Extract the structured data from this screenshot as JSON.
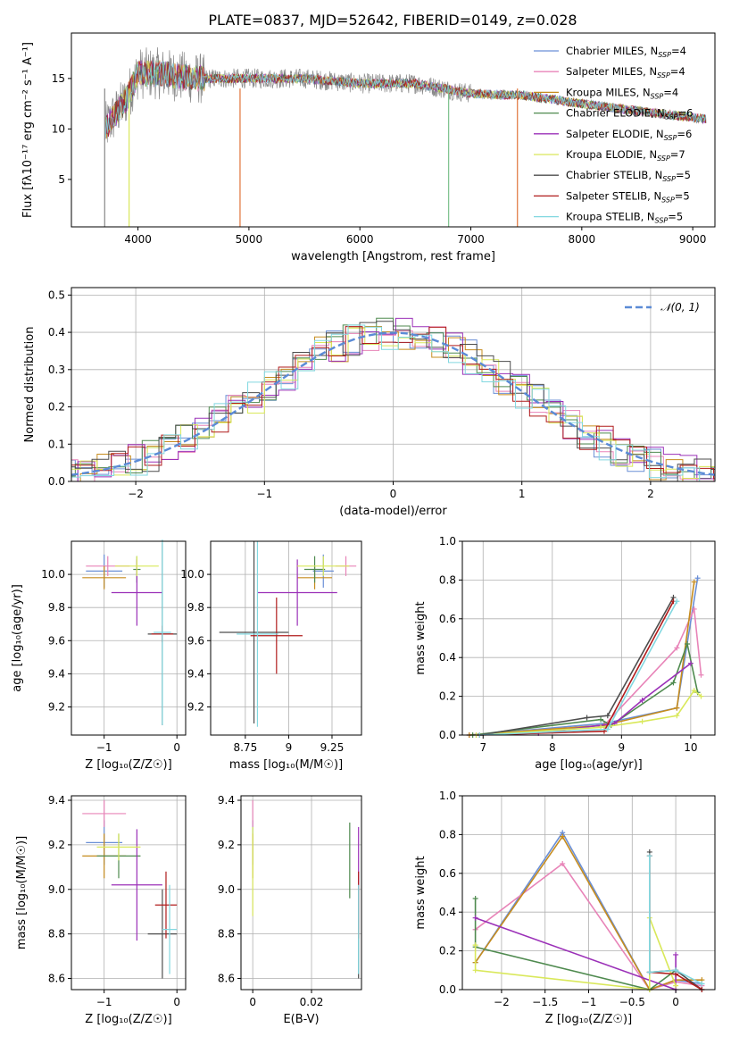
{
  "title": "PLATE=0837, MJD=52642, FIBERID=0149, z=0.028",
  "colors": {
    "chabrier_miles": "#6a8fd6",
    "salpeter_miles": "#e884b8",
    "kroupa_miles": "#c68c1e",
    "chabrier_elodie": "#4f8a4f",
    "salpeter_elodie": "#9b30b8",
    "kroupa_elodie": "#d9e85a",
    "chabrier_stelib": "#4d4d4d",
    "salpeter_stelib": "#b01c1c",
    "kroupa_stelib": "#82d8e0",
    "gaussian": "#5b8bd6",
    "grid": "#b0b0b0"
  },
  "legend_models": [
    {
      "label": "Chabrier MILES, N",
      "sub": "SSP",
      "eq": "=4",
      "color_key": "chabrier_miles"
    },
    {
      "label": "Salpeter MILES, N",
      "sub": "SSP",
      "eq": "=4",
      "color_key": "salpeter_miles"
    },
    {
      "label": "Kroupa MILES, N",
      "sub": "SSP",
      "eq": "=4",
      "color_key": "kroupa_miles"
    },
    {
      "label": "Chabrier ELODIE, N",
      "sub": "SSP",
      "eq": "=6",
      "color_key": "chabrier_elodie"
    },
    {
      "label": "Salpeter ELODIE, N",
      "sub": "SSP",
      "eq": "=6",
      "color_key": "salpeter_elodie"
    },
    {
      "label": "Kroupa ELODIE, N",
      "sub": "SSP",
      "eq": "=7",
      "color_key": "kroupa_elodie"
    },
    {
      "label": "Chabrier STELIB, N",
      "sub": "SSP",
      "eq": "=5",
      "color_key": "chabrier_stelib"
    },
    {
      "label": "Salpeter STELIB, N",
      "sub": "SSP",
      "eq": "=5",
      "color_key": "salpeter_stelib"
    },
    {
      "label": "Kroupa STELIB, N",
      "sub": "SSP",
      "eq": "=5",
      "color_key": "kroupa_stelib"
    }
  ],
  "chart_data": [
    {
      "type": "line",
      "title": "PLATE=0837, MJD=52642, FIBERID=0149, z=0.028",
      "xlabel": "wavelength [Angstrom, rest frame]",
      "ylabel": "Flux [fλ10⁻¹⁷ erg cm⁻² s⁻¹ A⁻¹]",
      "xlim": [
        3400,
        9200
      ],
      "ylim": [
        0.3,
        19.5
      ],
      "xticks": [
        4000,
        5000,
        6000,
        7000,
        8000,
        9000
      ],
      "yticks": [
        5,
        10,
        15
      ],
      "legend": "top-right",
      "series": [
        {
          "name": "data",
          "range": [
            3700,
            9120
          ],
          "envelope": [
            [
              3700,
              10
            ],
            [
              3800,
              11.5
            ],
            [
              3900,
              13
            ],
            [
              4000,
              15.5
            ],
            [
              4200,
              15.5
            ],
            [
              4500,
              15
            ],
            [
              5000,
              15
            ],
            [
              5500,
              15
            ],
            [
              6000,
              14.5
            ],
            [
              6500,
              14.5
            ],
            [
              7000,
              13.5
            ],
            [
              7500,
              13.3
            ],
            [
              8000,
              12.5
            ],
            [
              8500,
              11.8
            ],
            [
              9100,
              11
            ]
          ]
        },
        {
          "name": "models",
          "range": [
            3700,
            9120
          ],
          "envelope": [
            [
              3700,
              10
            ],
            [
              3800,
              11.5
            ],
            [
              3900,
              13
            ],
            [
              4000,
              15.5
            ],
            [
              4200,
              15.5
            ],
            [
              4500,
              15
            ],
            [
              5000,
              15
            ],
            [
              5500,
              15
            ],
            [
              6000,
              14.5
            ],
            [
              6500,
              14.5
            ],
            [
              7000,
              13.5
            ],
            [
              7500,
              13.3
            ],
            [
              8000,
              12.5
            ],
            [
              8500,
              11.8
            ],
            [
              9100,
              11
            ]
          ]
        }
      ]
    },
    {
      "type": "area",
      "xlabel": "(data-model)/error",
      "ylabel": "Normed distribution",
      "xlim": [
        -2.5,
        2.5
      ],
      "ylim": [
        0,
        0.52
      ],
      "xticks": [
        -2,
        -1,
        0,
        1,
        2
      ],
      "yticks": [
        0,
        0.1,
        0.2,
        0.3,
        0.4,
        0.5
      ],
      "legend": "top-right",
      "gaussian_label": "𝒩(0, 1)",
      "bins": 40
    },
    {
      "type": "scatter",
      "xlabel": "Z [log₁₀(Z/Z☉)]",
      "ylabel": "age  [log₁₀(age/yr)]",
      "xlim": [
        -1.45,
        0.12
      ],
      "ylim": [
        9.03,
        10.2
      ],
      "xticks": [
        -1,
        0
      ],
      "yticks": [
        9.2,
        9.4,
        9.6,
        9.8,
        10.0
      ],
      "points": [
        {
          "key": "chabrier_miles",
          "x": -1.0,
          "y": 10.02,
          "xerr": 0.25,
          "yerr": 0.1
        },
        {
          "key": "salpeter_miles",
          "x": -0.95,
          "y": 10.05,
          "xerr": 0.3,
          "yerr": 0.06
        },
        {
          "key": "kroupa_miles",
          "x": -1.0,
          "y": 9.98,
          "xerr": 0.3,
          "yerr": 0.07
        },
        {
          "key": "chabrier_elodie",
          "x": -0.55,
          "y": 10.03,
          "xerr": 0.05,
          "yerr": 0.08
        },
        {
          "key": "salpeter_elodie",
          "x": -0.55,
          "y": 9.89,
          "xerr": 0.35,
          "yerr": 0.2
        },
        {
          "key": "kroupa_elodie",
          "x": -0.55,
          "y": 10.05,
          "xerr": 0.3,
          "yerr": 0.06
        },
        {
          "key": "chabrier_stelib",
          "x": -0.2,
          "y": 9.64,
          "xerr": 0.2,
          "yerr": 0.55
        },
        {
          "key": "salpeter_stelib",
          "x": -0.2,
          "y": 9.64,
          "xerr": 0.15,
          "yerr": 0.05
        },
        {
          "key": "kroupa_stelib",
          "x": -0.2,
          "y": 9.65,
          "xerr": 0.12,
          "yerr": 0.56
        }
      ]
    },
    {
      "type": "scatter",
      "xlabel": "mass [log₁₀(M/M☉)]",
      "ylabel": "",
      "xlim": [
        8.55,
        9.42
      ],
      "ylim": [
        9.03,
        10.2
      ],
      "xticks": [
        8.75,
        9.0,
        9.25
      ],
      "yticks": [
        9.2,
        9.4,
        9.6,
        9.8,
        10.0
      ],
      "points": [
        {
          "key": "chabrier_miles",
          "x": 9.2,
          "y": 10.02,
          "xerr": 0.06,
          "yerr": 0.1
        },
        {
          "key": "salpeter_miles",
          "x": 9.33,
          "y": 10.05,
          "xerr": 0.06,
          "yerr": 0.06
        },
        {
          "key": "kroupa_miles",
          "x": 9.15,
          "y": 9.98,
          "xerr": 0.1,
          "yerr": 0.07
        },
        {
          "key": "chabrier_elodie",
          "x": 9.15,
          "y": 10.03,
          "xerr": 0.06,
          "yerr": 0.08
        },
        {
          "key": "salpeter_elodie",
          "x": 9.05,
          "y": 9.89,
          "xerr": 0.23,
          "yerr": 0.2
        },
        {
          "key": "kroupa_elodie",
          "x": 9.2,
          "y": 10.05,
          "xerr": 0.15,
          "yerr": 0.06
        },
        {
          "key": "chabrier_stelib",
          "x": 8.8,
          "y": 9.65,
          "xerr": 0.2,
          "yerr": 0.55
        },
        {
          "key": "salpeter_stelib",
          "x": 8.93,
          "y": 9.63,
          "xerr": 0.15,
          "yerr": 0.23
        },
        {
          "key": "kroupa_stelib",
          "x": 8.82,
          "y": 9.64,
          "xerr": 0.12,
          "yerr": 0.56
        }
      ]
    },
    {
      "type": "line",
      "xlabel": "age  [log₁₀(age/yr)]",
      "ylabel": "mass weight",
      "xlim": [
        6.7,
        10.35
      ],
      "ylim": [
        0,
        1.0
      ],
      "xticks": [
        7,
        8,
        9,
        10
      ],
      "yticks": [
        0.0,
        0.2,
        0.4,
        0.6,
        0.8,
        1.0
      ],
      "series": [
        {
          "key": "chabrier_miles",
          "x": [
            6.8,
            8.75,
            9.8,
            10.1
          ],
          "y": [
            0.0,
            0.06,
            0.14,
            0.81
          ]
        },
        {
          "key": "salpeter_miles",
          "x": [
            6.8,
            8.75,
            9.8,
            10.05,
            10.15
          ],
          "y": [
            0.0,
            0.05,
            0.45,
            0.65,
            0.31
          ]
        },
        {
          "key": "kroupa_miles",
          "x": [
            6.8,
            8.75,
            9.8,
            10.05
          ],
          "y": [
            0.0,
            0.05,
            0.14,
            0.79
          ]
        },
        {
          "key": "chabrier_elodie",
          "x": [
            6.85,
            8.7,
            8.85,
            9.75,
            9.95,
            10.1
          ],
          "y": [
            0.0,
            0.08,
            0.05,
            0.27,
            0.47,
            0.22
          ]
        },
        {
          "key": "salpeter_elodie",
          "x": [
            6.9,
            7.8,
            8.9,
            9.3,
            10.0
          ],
          "y": [
            0.0,
            0.01,
            0.06,
            0.18,
            0.37
          ]
        },
        {
          "key": "kroupa_elodie",
          "x": [
            6.9,
            8.7,
            9.3,
            9.8,
            10.05,
            10.15
          ],
          "y": [
            0.0,
            0.04,
            0.07,
            0.1,
            0.23,
            0.2
          ]
        },
        {
          "key": "chabrier_stelib",
          "x": [
            6.95,
            8.5,
            8.8,
            9.75
          ],
          "y": [
            0.0,
            0.09,
            0.1,
            0.71
          ]
        },
        {
          "key": "salpeter_stelib",
          "x": [
            6.95,
            8.75,
            9.75
          ],
          "y": [
            0.0,
            0.02,
            0.69
          ]
        },
        {
          "key": "kroupa_stelib",
          "x": [
            6.95,
            8.8,
            9.8
          ],
          "y": [
            0.0,
            0.03,
            0.69
          ]
        }
      ]
    },
    {
      "type": "scatter",
      "xlabel": "Z [log₁₀(Z/Z☉)]",
      "ylabel": "mass [log₁₀(M/M☉)]",
      "xlim": [
        -1.45,
        0.12
      ],
      "ylim": [
        8.55,
        9.42
      ],
      "xticks": [
        -1,
        0
      ],
      "yticks": [
        8.6,
        8.8,
        9.0,
        9.2,
        9.4
      ],
      "points": [
        {
          "key": "chabrier_miles",
          "x": -1.0,
          "y": 9.21,
          "xerr": 0.25,
          "yerr": 0.1
        },
        {
          "key": "salpeter_miles",
          "x": -1.0,
          "y": 9.34,
          "xerr": 0.3,
          "yerr": 0.06
        },
        {
          "key": "kroupa_miles",
          "x": -1.0,
          "y": 9.15,
          "xerr": 0.3,
          "yerr": 0.1
        },
        {
          "key": "chabrier_elodie",
          "x": -0.8,
          "y": 9.15,
          "xerr": 0.3,
          "yerr": 0.1
        },
        {
          "key": "salpeter_elodie",
          "x": -0.55,
          "y": 9.02,
          "xerr": 0.35,
          "yerr": 0.25
        },
        {
          "key": "kroupa_elodie",
          "x": -0.8,
          "y": 9.19,
          "xerr": 0.3,
          "yerr": 0.06
        },
        {
          "key": "chabrier_stelib",
          "x": -0.2,
          "y": 8.8,
          "xerr": 0.2,
          "yerr": 0.2
        },
        {
          "key": "salpeter_stelib",
          "x": -0.15,
          "y": 8.93,
          "xerr": 0.15,
          "yerr": 0.15
        },
        {
          "key": "kroupa_stelib",
          "x": -0.1,
          "y": 8.82,
          "xerr": 0.1,
          "yerr": 0.2
        }
      ]
    },
    {
      "type": "scatter",
      "xlabel": "E(B-V)",
      "ylabel": "",
      "xlim": [
        -0.004,
        0.037
      ],
      "ylim": [
        8.55,
        9.42
      ],
      "xticks": [
        0.0,
        0.02
      ],
      "yticks": [
        8.6,
        8.8,
        9.0,
        9.2,
        9.4
      ],
      "points": [
        {
          "key": "chabrier_miles",
          "x": 0.0,
          "y": 9.21,
          "yerr": 0.1
        },
        {
          "key": "salpeter_miles",
          "x": 0.0,
          "y": 9.34,
          "yerr": 0.06
        },
        {
          "key": "kroupa_miles",
          "x": 0.0,
          "y": 9.15,
          "yerr": 0.1
        },
        {
          "key": "kroupa_elodie",
          "x": 0.0,
          "y": 9.08,
          "yerr": 0.2
        },
        {
          "key": "chabrier_elodie",
          "x": 0.033,
          "y": 9.13,
          "yerr": 0.17
        },
        {
          "key": "salpeter_elodie",
          "x": 0.036,
          "y": 9.05,
          "yerr": 0.23
        },
        {
          "key": "chabrier_stelib",
          "x": 0.036,
          "y": 8.8,
          "yerr": 0.2
        },
        {
          "key": "salpeter_stelib",
          "x": 0.036,
          "y": 8.93,
          "yerr": 0.15
        },
        {
          "key": "kroupa_stelib",
          "x": 0.036,
          "y": 8.82,
          "yerr": 0.2
        }
      ]
    },
    {
      "type": "line",
      "xlabel": "Z [log₁₀(Z/Z☉)]",
      "ylabel": "mass weight",
      "xlim": [
        -2.45,
        0.45
      ],
      "ylim": [
        0,
        1.0
      ],
      "xticks": [
        -2.0,
        -1.5,
        -1.0,
        -0.5,
        0.0
      ],
      "yticks": [
        0.0,
        0.2,
        0.4,
        0.6,
        0.8,
        1.0
      ],
      "series": [
        {
          "key": "chabrier_miles",
          "x": [
            -2.3,
            -1.3,
            -0.3,
            0.0,
            0.3
          ],
          "y": [
            0.14,
            0.81,
            0.0,
            0.05,
            0.03
          ]
        },
        {
          "key": "salpeter_miles",
          "x": [
            -2.3,
            -1.3,
            -0.3,
            0.0,
            0.3
          ],
          "y": [
            0.31,
            0.65,
            0.0,
            0.04,
            0.02
          ]
        },
        {
          "key": "kroupa_miles",
          "x": [
            -2.3,
            -1.3,
            -0.3,
            0.0,
            0.3
          ],
          "y": [
            0.14,
            0.79,
            0.0,
            0.05,
            0.05
          ]
        },
        {
          "key": "chabrier_elodie",
          "x": [
            -2.3,
            -2.3,
            -0.3,
            0.0,
            0.0
          ],
          "y": [
            0.47,
            0.22,
            0.0,
            0.1,
            0.08
          ]
        },
        {
          "key": "salpeter_elodie",
          "x": [
            -2.3,
            0.0,
            0.0
          ],
          "y": [
            0.37,
            0.0,
            0.18
          ]
        },
        {
          "key": "kroupa_elodie",
          "x": [
            -2.3,
            -2.3,
            -0.3,
            -0.3,
            0.0
          ],
          "y": [
            0.23,
            0.1,
            0.0,
            0.37,
            0.02
          ]
        },
        {
          "key": "chabrier_stelib",
          "x": [
            -0.3,
            -0.3,
            0.0,
            0.3
          ],
          "y": [
            0.71,
            0.09,
            0.1,
            0.0
          ]
        },
        {
          "key": "salpeter_stelib",
          "x": [
            -0.3,
            -0.3,
            0.0,
            0.3
          ],
          "y": [
            0.69,
            0.09,
            0.08,
            0.0
          ]
        },
        {
          "key": "kroupa_stelib",
          "x": [
            -0.3,
            -0.3,
            0.0,
            0.3
          ],
          "y": [
            0.69,
            0.09,
            0.1,
            0.03
          ]
        }
      ]
    }
  ]
}
